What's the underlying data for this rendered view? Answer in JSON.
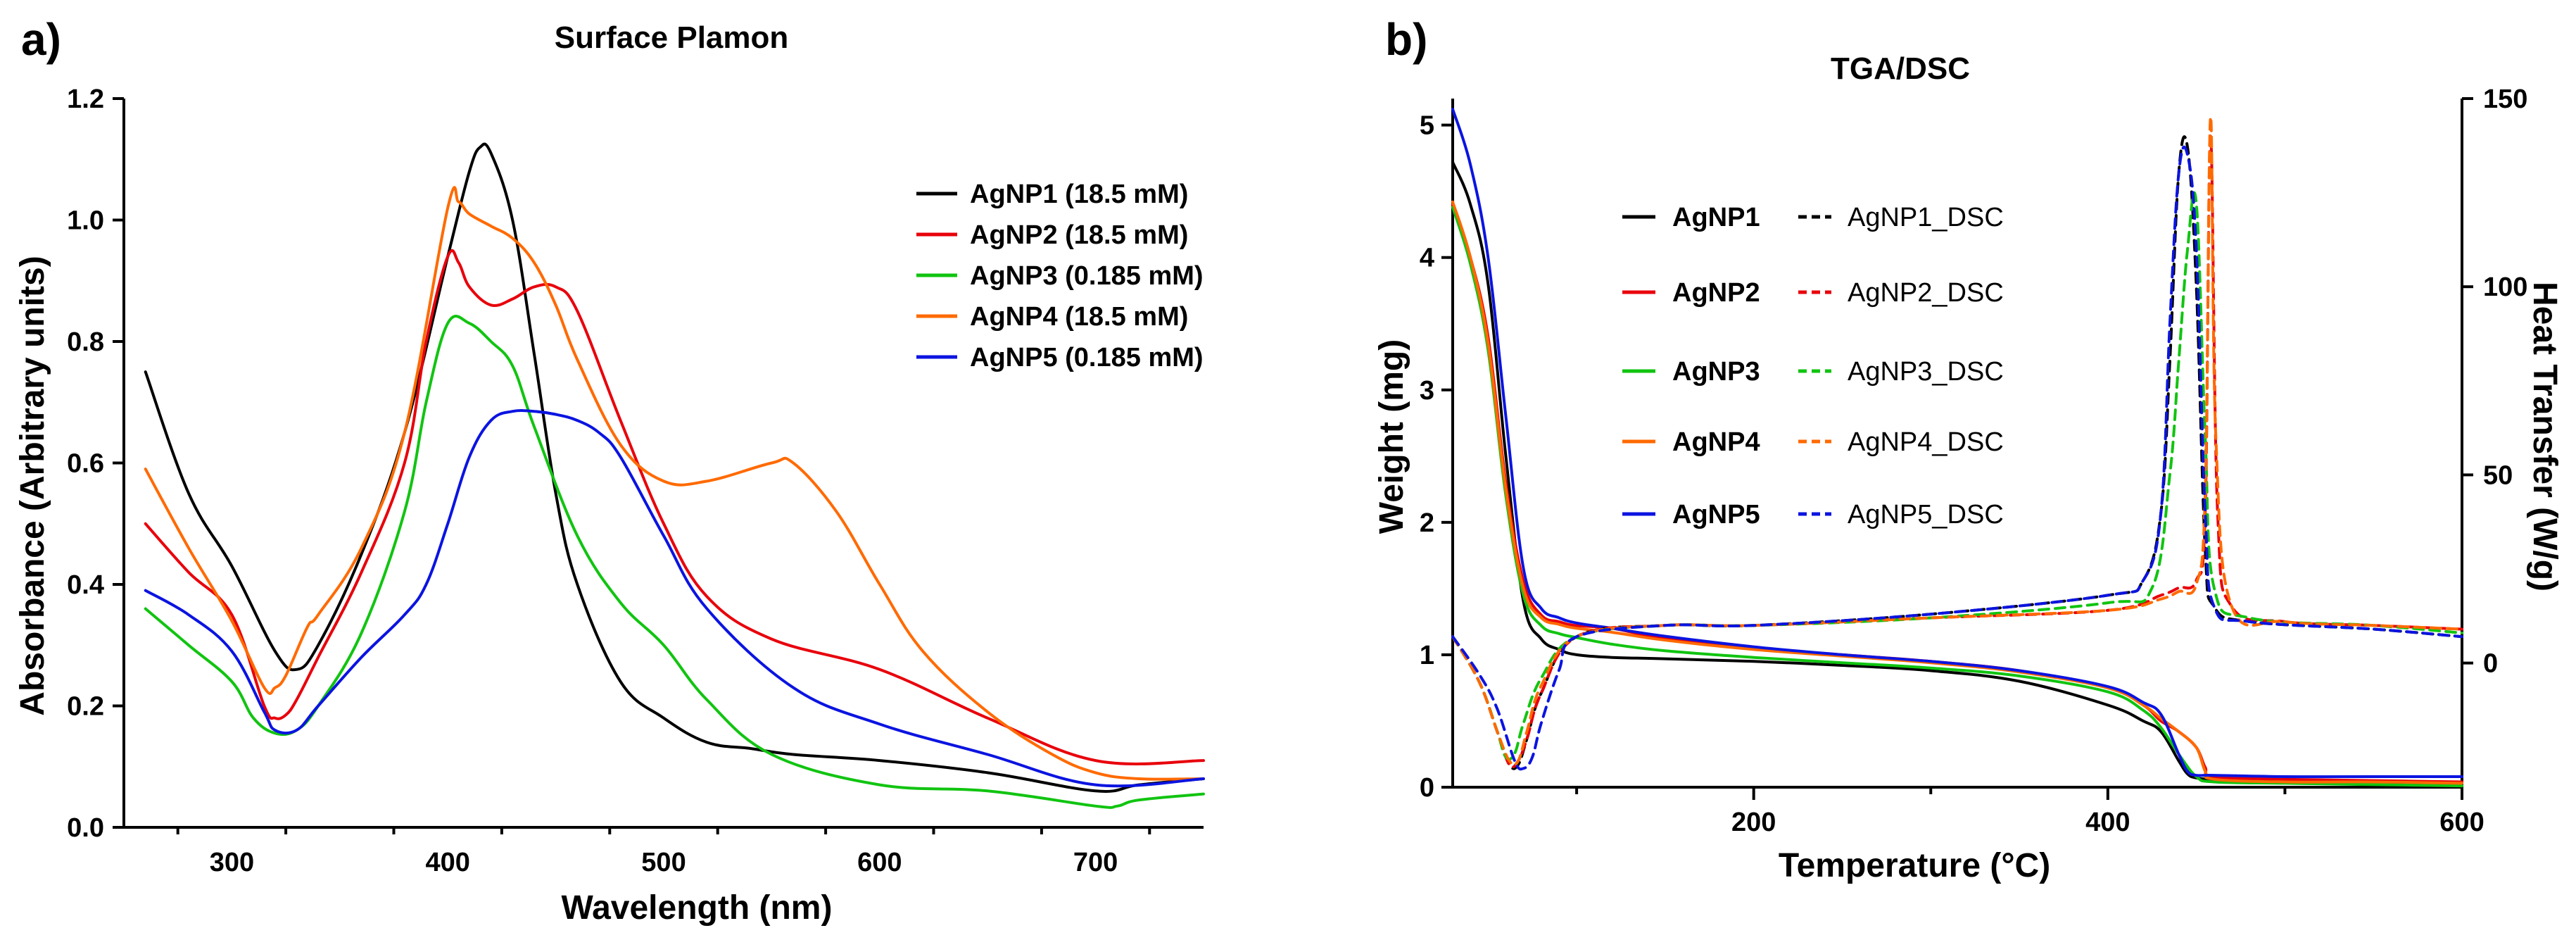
{
  "colors": {
    "AgNP1": "#000000",
    "AgNP2": "#e8000b",
    "AgNP3": "#11c411",
    "AgNP4": "#ff6a00",
    "AgNP5": "#0b14e0"
  },
  "chart_data": [
    {
      "panel": "a)",
      "type": "line",
      "title": "Surface Plamon",
      "xlabel": "Wavelength (nm)",
      "ylabel": "Absorbance (Arbitrary units)",
      "xlim": [
        250,
        750
      ],
      "ylim": [
        0.0,
        1.2
      ],
      "xticks": [
        300,
        400,
        500,
        600,
        700
      ],
      "yticks": [
        0.0,
        0.2,
        0.4,
        0.6,
        0.8,
        1.0,
        1.2
      ],
      "ytick_labels": [
        "0.0",
        "0.2",
        "0.4",
        "0.6",
        "0.8",
        "1.0",
        "1.2"
      ],
      "legend_position": "top-right",
      "series": [
        {
          "name": "AgNP1 (18.5 mM)",
          "color_key": "AgNP1",
          "x": [
            260,
            280,
            300,
            320,
            330,
            340,
            360,
            380,
            400,
            410,
            415,
            420,
            430,
            440,
            450,
            460,
            480,
            500,
            520,
            540,
            560,
            600,
            650,
            700,
            720,
            750
          ],
          "y": [
            0.75,
            0.55,
            0.43,
            0.29,
            0.26,
            0.3,
            0.45,
            0.65,
            0.94,
            1.08,
            1.12,
            1.11,
            1.0,
            0.78,
            0.55,
            0.4,
            0.24,
            0.18,
            0.14,
            0.13,
            0.12,
            0.11,
            0.09,
            0.06,
            0.07,
            0.08
          ]
        },
        {
          "name": "AgNP2 (18.5 mM)",
          "color_key": "AgNP2",
          "x": [
            260,
            280,
            300,
            315,
            320,
            325,
            330,
            340,
            360,
            380,
            390,
            400,
            405,
            410,
            420,
            430,
            440,
            450,
            460,
            480,
            500,
            520,
            550,
            600,
            650,
            700,
            750
          ],
          "y": [
            0.5,
            0.42,
            0.35,
            0.2,
            0.18,
            0.185,
            0.21,
            0.28,
            0.42,
            0.6,
            0.8,
            0.94,
            0.93,
            0.89,
            0.86,
            0.87,
            0.89,
            0.89,
            0.85,
            0.67,
            0.5,
            0.38,
            0.31,
            0.26,
            0.18,
            0.11,
            0.11
          ]
        },
        {
          "name": "AgNP3 (0.185 mM)",
          "color_key": "AgNP3",
          "x": [
            260,
            280,
            300,
            310,
            320,
            330,
            340,
            360,
            380,
            390,
            400,
            410,
            420,
            430,
            440,
            460,
            480,
            500,
            520,
            550,
            600,
            650,
            700,
            710,
            720,
            750
          ],
          "y": [
            0.36,
            0.3,
            0.24,
            0.18,
            0.155,
            0.16,
            0.2,
            0.32,
            0.52,
            0.7,
            0.83,
            0.83,
            0.8,
            0.76,
            0.66,
            0.48,
            0.37,
            0.3,
            0.21,
            0.12,
            0.07,
            0.06,
            0.035,
            0.035,
            0.045,
            0.055
          ]
        },
        {
          "name": "AgNP4 (18.5 mM)",
          "color_key": "AgNP4",
          "x": [
            260,
            280,
            300,
            315,
            320,
            325,
            335,
            340,
            360,
            380,
            400,
            405,
            410,
            420,
            430,
            440,
            450,
            460,
            480,
            500,
            520,
            550,
            560,
            580,
            600,
            620,
            650,
            680,
            700,
            720,
            750
          ],
          "y": [
            0.59,
            0.46,
            0.34,
            0.23,
            0.23,
            0.25,
            0.33,
            0.35,
            0.46,
            0.65,
            1.02,
            1.03,
            1.01,
            0.99,
            0.97,
            0.93,
            0.86,
            0.77,
            0.63,
            0.57,
            0.57,
            0.6,
            0.6,
            0.52,
            0.4,
            0.29,
            0.19,
            0.12,
            0.09,
            0.08,
            0.08
          ]
        },
        {
          "name": "AgNP5 (0.185 mM)",
          "color_key": "AgNP5",
          "x": [
            260,
            280,
            300,
            315,
            320,
            330,
            340,
            360,
            380,
            390,
            400,
            410,
            420,
            430,
            440,
            450,
            460,
            470,
            480,
            500,
            520,
            560,
            600,
            650,
            700,
            750
          ],
          "y": [
            0.39,
            0.35,
            0.29,
            0.19,
            0.16,
            0.16,
            0.2,
            0.28,
            0.35,
            0.4,
            0.5,
            0.61,
            0.67,
            0.685,
            0.685,
            0.68,
            0.67,
            0.65,
            0.61,
            0.48,
            0.36,
            0.23,
            0.17,
            0.12,
            0.07,
            0.08
          ]
        }
      ]
    },
    {
      "panel": "b)",
      "type": "line",
      "title": "TGA/DSC",
      "xlabel": "Temperature (°C)",
      "ylabel": "Weight (mg)",
      "ylabel_right": "Heat Transfer (W/g)",
      "xlim": [
        30,
        600
      ],
      "ylim": [
        0,
        5.2
      ],
      "ylim_right": [
        -33,
        150
      ],
      "xticks": [
        200,
        400,
        600
      ],
      "yticks": [
        0,
        1,
        2,
        3,
        4,
        5
      ],
      "yticks_right": [
        0,
        50,
        100,
        150
      ],
      "legend_position": "upper-left",
      "series": [
        {
          "name": "AgNP1",
          "color_key": "AgNP1",
          "axis": "left",
          "dashed": false,
          "x": [
            30,
            40,
            50,
            60,
            70,
            80,
            90,
            100,
            120,
            150,
            200,
            250,
            300,
            350,
            400,
            420,
            430,
            440,
            445,
            450,
            460,
            500,
            550,
            600
          ],
          "y": [
            4.72,
            4.4,
            3.8,
            2.5,
            1.4,
            1.12,
            1.04,
            1.0,
            0.98,
            0.97,
            0.95,
            0.92,
            0.88,
            0.8,
            0.62,
            0.5,
            0.42,
            0.2,
            0.1,
            0.07,
            0.06,
            0.04,
            0.03,
            0.02
          ]
        },
        {
          "name": "AgNP2",
          "color_key": "AgNP2",
          "axis": "left",
          "dashed": false,
          "x": [
            30,
            40,
            50,
            60,
            70,
            80,
            90,
            100,
            120,
            150,
            200,
            250,
            300,
            350,
            400,
            420,
            430,
            440,
            450,
            455,
            460,
            500,
            550,
            600
          ],
          "y": [
            4.4,
            4.0,
            3.4,
            2.3,
            1.55,
            1.3,
            1.25,
            1.22,
            1.2,
            1.12,
            1.05,
            1.0,
            0.95,
            0.88,
            0.75,
            0.62,
            0.5,
            0.42,
            0.3,
            0.15,
            0.08,
            0.06,
            0.05,
            0.04
          ]
        },
        {
          "name": "AgNP3",
          "color_key": "AgNP3",
          "axis": "left",
          "dashed": false,
          "x": [
            30,
            40,
            50,
            60,
            70,
            80,
            90,
            100,
            120,
            150,
            200,
            250,
            300,
            350,
            400,
            420,
            430,
            440,
            450,
            460,
            500,
            550,
            600
          ],
          "y": [
            4.38,
            3.95,
            3.3,
            2.2,
            1.45,
            1.22,
            1.16,
            1.13,
            1.08,
            1.03,
            0.98,
            0.94,
            0.9,
            0.84,
            0.72,
            0.58,
            0.45,
            0.25,
            0.08,
            0.04,
            0.03,
            0.02,
            0.01
          ]
        },
        {
          "name": "AgNP4",
          "color_key": "AgNP4",
          "axis": "left",
          "dashed": false,
          "x": [
            30,
            40,
            50,
            60,
            70,
            80,
            90,
            100,
            120,
            150,
            200,
            250,
            300,
            350,
            400,
            420,
            430,
            440,
            450,
            455,
            460,
            500,
            550,
            600
          ],
          "y": [
            4.42,
            4.0,
            3.35,
            2.25,
            1.5,
            1.28,
            1.23,
            1.2,
            1.17,
            1.11,
            1.04,
            0.99,
            0.94,
            0.87,
            0.75,
            0.62,
            0.52,
            0.42,
            0.3,
            0.12,
            0.06,
            0.04,
            0.04,
            0.03
          ]
        },
        {
          "name": "AgNP5",
          "color_key": "AgNP5",
          "axis": "left",
          "dashed": false,
          "x": [
            30,
            40,
            50,
            60,
            70,
            80,
            90,
            100,
            120,
            150,
            200,
            250,
            300,
            350,
            400,
            420,
            430,
            440,
            445,
            450,
            460,
            500,
            550,
            600
          ],
          "y": [
            5.12,
            4.7,
            4.0,
            2.8,
            1.65,
            1.35,
            1.28,
            1.24,
            1.2,
            1.14,
            1.06,
            1.0,
            0.95,
            0.88,
            0.76,
            0.64,
            0.55,
            0.25,
            0.12,
            0.09,
            0.09,
            0.08,
            0.08,
            0.08
          ]
        },
        {
          "name": "AgNP1_DSC",
          "color_key": "AgNP1",
          "axis": "right",
          "dashed": true,
          "x": [
            30,
            45,
            55,
            62,
            67,
            72,
            80,
            100,
            150,
            200,
            300,
            400,
            420,
            430,
            435,
            440,
            445,
            450,
            455,
            460,
            480,
            550,
            600
          ],
          "y": [
            7,
            -5,
            -18,
            -27,
            -27,
            -20,
            -8,
            7,
            10,
            10,
            13,
            18,
            22,
            40,
            80,
            130,
            137,
            100,
            30,
            15,
            11,
            9,
            7
          ]
        },
        {
          "name": "AgNP2_DSC",
          "color_key": "AgNP2",
          "axis": "right",
          "dashed": true,
          "x": [
            30,
            45,
            55,
            62,
            67,
            72,
            80,
            100,
            150,
            200,
            300,
            400,
            430,
            440,
            450,
            455,
            458,
            462,
            470,
            500,
            550,
            600
          ],
          "y": [
            7,
            -5,
            -18,
            -27,
            -26,
            -20,
            -8,
            7,
            10,
            10,
            12,
            14,
            18,
            20,
            22,
            40,
            140,
            40,
            15,
            11,
            10,
            9
          ]
        },
        {
          "name": "AgNP3_DSC",
          "color_key": "AgNP3",
          "axis": "right",
          "dashed": true,
          "x": [
            30,
            45,
            55,
            60,
            65,
            70,
            80,
            100,
            150,
            200,
            300,
            400,
            425,
            435,
            440,
            445,
            450,
            455,
            460,
            480,
            550,
            600
          ],
          "y": [
            7,
            -5,
            -18,
            -25,
            -24,
            -16,
            -4,
            7,
            10,
            10,
            12,
            16,
            20,
            50,
            80,
            110,
            122,
            60,
            20,
            12,
            10,
            8
          ]
        },
        {
          "name": "AgNP4_DSC",
          "color_key": "AgNP4",
          "axis": "right",
          "dashed": true,
          "x": [
            30,
            45,
            55,
            62,
            67,
            72,
            80,
            100,
            150,
            200,
            300,
            400,
            430,
            440,
            450,
            455,
            458,
            461,
            470,
            500,
            550,
            600
          ],
          "y": [
            7,
            -5,
            -18,
            -26,
            -26,
            -18,
            -6,
            7,
            10,
            10,
            12,
            14,
            17,
            19,
            21,
            45,
            145,
            60,
            15,
            11,
            10,
            9
          ]
        },
        {
          "name": "AgNP5_DSC",
          "color_key": "AgNP5",
          "axis": "right",
          "dashed": true,
          "x": [
            30,
            45,
            55,
            65,
            70,
            75,
            80,
            90,
            100,
            150,
            200,
            300,
            400,
            420,
            430,
            435,
            440,
            445,
            450,
            455,
            460,
            480,
            550,
            600
          ],
          "y": [
            7,
            -3,
            -12,
            -26,
            -28,
            -25,
            -16,
            -2,
            7,
            10,
            10,
            13,
            18,
            22,
            40,
            90,
            130,
            135,
            110,
            40,
            15,
            11,
            9,
            7
          ]
        }
      ],
      "legend_rows": [
        {
          "tga": "AgNP1",
          "dsc": "AgNP1_DSC"
        },
        {
          "tga": "AgNP2",
          "dsc": "AgNP2_DSC"
        },
        {
          "tga": "AgNP3",
          "dsc": "AgNP3_DSC"
        },
        {
          "tga": "AgNP4",
          "dsc": "AgNP4_DSC"
        },
        {
          "tga": "AgNP5",
          "dsc": "AgNP5_DSC"
        }
      ]
    }
  ]
}
